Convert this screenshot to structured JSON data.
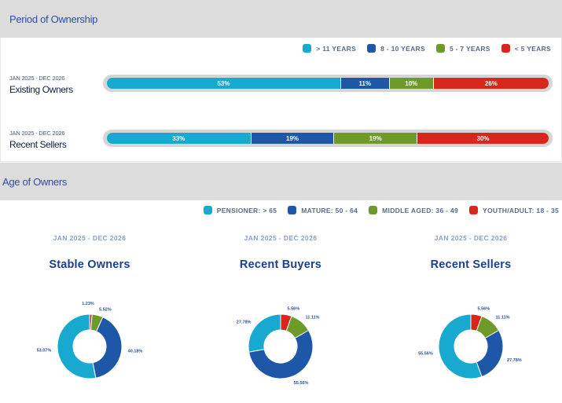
{
  "sections": {
    "ownership_title": "Period of Ownership",
    "age_title": "Age of Owners"
  },
  "chart_data": [
    {
      "type": "bar",
      "stacked": true,
      "orientation": "horizontal",
      "title": "Period of Ownership",
      "legend": [
        {
          "label": "> 11 YEARS",
          "color": "#17a9d0"
        },
        {
          "label": "8 - 10 YEARS",
          "color": "#1e56a8"
        },
        {
          "label": "5 - 7 YEARS",
          "color": "#6e9a2a"
        },
        {
          "label": "< 5 YEARS",
          "color": "#d9261c"
        }
      ],
      "rows": [
        {
          "date": "JAN 2025 - DEC 2026",
          "label": "Existing Owners",
          "values": [
            53,
            11,
            10,
            26
          ],
          "display": [
            "53%",
            "11%",
            "10%",
            "26%"
          ]
        },
        {
          "date": "JAN 2025 - DEC 2026",
          "label": "Recent Sellers",
          "values": [
            33,
            19,
            19,
            30
          ],
          "display": [
            "33%",
            "19%",
            "19%",
            "30%"
          ]
        }
      ]
    },
    {
      "type": "pie",
      "donut": true,
      "title": "Age of Owners",
      "legend": [
        {
          "label": "PENSIONER: > 65",
          "color": "#17a9d0"
        },
        {
          "label": "MATURE: 50 - 64",
          "color": "#1e56a8"
        },
        {
          "label": "MIDDLE AGED: 36 - 49",
          "color": "#6e9a2a"
        },
        {
          "label": "YOUTH/ADULT: 18 - 35",
          "color": "#d9261c"
        }
      ],
      "charts": [
        {
          "date": "JAN 2025 - DEC 2026",
          "title": "Stable Owners",
          "slices": [
            {
              "category": "YOUTH/ADULT: 18 - 35",
              "value": 1.23,
              "label": "1.23%"
            },
            {
              "category": "MIDDLE AGED: 36 - 49",
              "value": 5.52,
              "label": "5.52%"
            },
            {
              "category": "MATURE: 50 - 64",
              "value": 40.18,
              "label": "40.18%"
            },
            {
              "category": "PENSIONER: > 65",
              "value": 53.07,
              "label": "53.07%"
            }
          ]
        },
        {
          "date": "JAN 2025 - DEC 2026",
          "title": "Recent Buyers",
          "slices": [
            {
              "category": "YOUTH/ADULT: 18 - 35",
              "value": 5.56,
              "label": "5.56%"
            },
            {
              "category": "MIDDLE AGED: 36 - 49",
              "value": 11.11,
              "label": "11.11%"
            },
            {
              "category": "MATURE: 50 - 64",
              "value": 55.56,
              "label": "55.56%"
            },
            {
              "category": "PENSIONER: > 65",
              "value": 27.78,
              "label": "27.78%"
            }
          ]
        },
        {
          "date": "JAN 2025 - DEC 2026",
          "title": "Recent Sellers",
          "slices": [
            {
              "category": "YOUTH/ADULT: 18 - 35",
              "value": 5.56,
              "label": "5.56%"
            },
            {
              "category": "MIDDLE AGED: 36 - 49",
              "value": 11.11,
              "label": "11.11%"
            },
            {
              "category": "MATURE: 50 - 64",
              "value": 27.78,
              "label": "27.78%"
            },
            {
              "category": "PENSIONER: > 65",
              "value": 55.56,
              "label": "55.56%"
            }
          ]
        }
      ]
    }
  ]
}
